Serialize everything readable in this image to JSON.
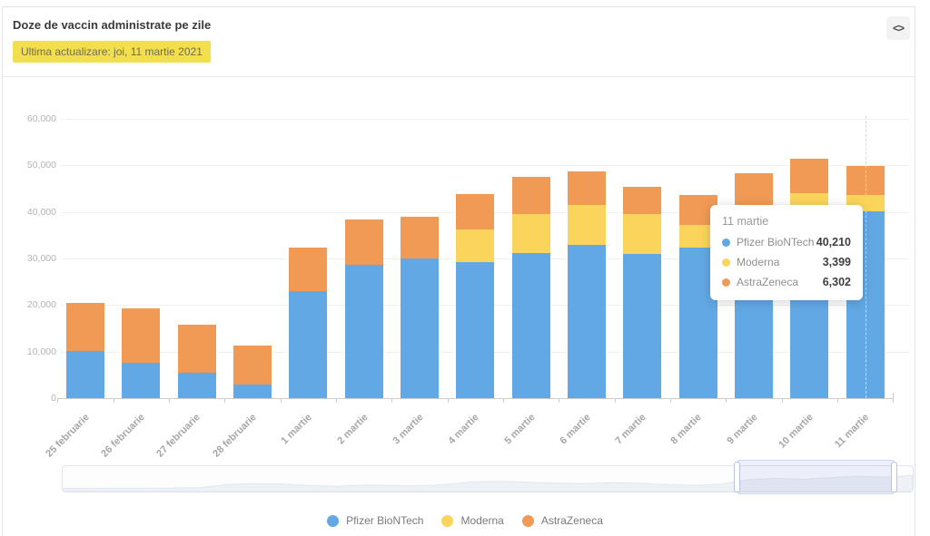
{
  "header": {
    "title": "Doze de vaccin administrate pe zile",
    "updated_badge": "Ultima actualizare: joi, 11 martie 2021",
    "embed_icon": "<>"
  },
  "colors": {
    "pfizer_blue": "#62a8e5",
    "moderna_yellow": "#fbd45c",
    "astrazeneca_orange": "#f09a56",
    "badge_yellow": "#f3df4e",
    "highlight_dash": "#cfdaee"
  },
  "chart_data": {
    "type": "bar",
    "stacked": true,
    "title": "Doze de vaccin administrate pe zile",
    "xlabel": "",
    "ylabel": "",
    "ylim": [
      0,
      60000
    ],
    "yticks": [
      0,
      10000,
      20000,
      30000,
      40000,
      50000,
      60000
    ],
    "ytick_labels": [
      "0",
      "10,000",
      "20,000",
      "30,000",
      "40,000",
      "50,000",
      "60,000"
    ],
    "grid": true,
    "legend_position": "bottom",
    "highlighted_category": "11 martie",
    "categories": [
      "25 februarie",
      "26 februarie",
      "27 februarie",
      "28 februarie",
      "1 martie",
      "2 martie",
      "3 martie",
      "4 martie",
      "5 martie",
      "6 martie",
      "7 martie",
      "8 martie",
      "9 martie",
      "10 martie",
      "11 martie"
    ],
    "series": [
      {
        "name": "Pfizer BioNTech",
        "color": "#62a8e5",
        "values": [
          10100,
          7600,
          5500,
          2900,
          23000,
          28700,
          30000,
          29200,
          31100,
          32900,
          30900,
          32300,
          36900,
          40100,
          40210
        ]
      },
      {
        "name": "Moderna",
        "color": "#fbd45c",
        "values": [
          0,
          0,
          0,
          0,
          0,
          0,
          0,
          7000,
          8500,
          8500,
          8600,
          5000,
          3600,
          4000,
          3399
        ]
      },
      {
        "name": "AstraZeneca",
        "color": "#f09a56",
        "values": [
          10300,
          11700,
          10200,
          8400,
          9300,
          9700,
          8900,
          7700,
          7900,
          7300,
          5900,
          6300,
          7800,
          7400,
          6302
        ]
      }
    ]
  },
  "tooltip": {
    "title": "11 martie",
    "rows": [
      {
        "name": "Pfizer BioNTech",
        "value": "40,210",
        "color": "#62a8e5"
      },
      {
        "name": "Moderna",
        "value": "3,399",
        "color": "#fbd45c"
      },
      {
        "name": "AstraZeneca",
        "value": "6,302",
        "color": "#f09a56"
      }
    ]
  },
  "legend": {
    "items": [
      {
        "label": "Pfizer BioNTech",
        "color": "#62a8e5"
      },
      {
        "label": "Moderna",
        "color": "#fbd45c"
      },
      {
        "label": "AstraZeneca",
        "color": "#f09a56"
      }
    ]
  },
  "navigator": {
    "sparkline": [
      0.06,
      0.06,
      0.07,
      0.07,
      0.08,
      0.1,
      0.24,
      0.28,
      0.26,
      0.2,
      0.16,
      0.22,
      0.2,
      0.18,
      0.24,
      0.36,
      0.38,
      0.34,
      0.3,
      0.28,
      0.32,
      0.3,
      0.24,
      0.2,
      0.26,
      0.46,
      0.52,
      0.48,
      0.55,
      0.62,
      0.58,
      0.66
    ],
    "selection": {
      "start": 0.793,
      "end": 0.977
    }
  }
}
